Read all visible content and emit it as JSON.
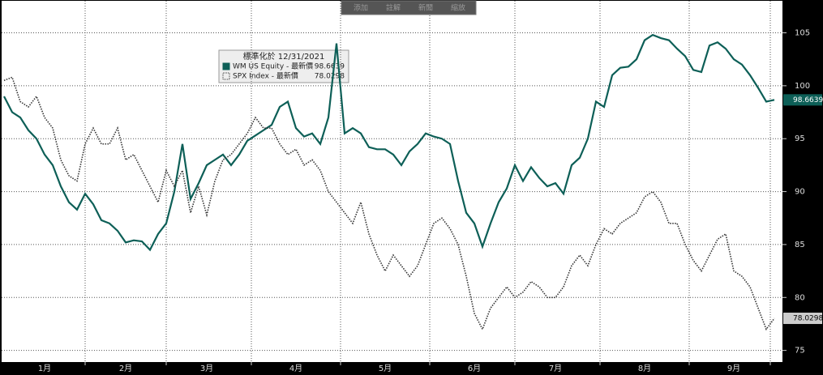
{
  "chart_data": {
    "type": "line",
    "toolbar": [
      "添加",
      "註解",
      "新聞",
      "縮放"
    ],
    "legend_title": "標準化於 12/31/2021",
    "categories": [
      null,
      null,
      null,
      null,
      null,
      "1月",
      null,
      null,
      null,
      null,
      null,
      null,
      null,
      null,
      null,
      "2月",
      null,
      null,
      null,
      null,
      null,
      null,
      null,
      null,
      null,
      "3月",
      null,
      null,
      null,
      null,
      null,
      null,
      null,
      null,
      null,
      null,
      "4月",
      null,
      null,
      null,
      null,
      null,
      null,
      null,
      null,
      null,
      null,
      "5月",
      null,
      null,
      null,
      null,
      null,
      null,
      null,
      null,
      null,
      null,
      "6月",
      null,
      null,
      null,
      null,
      null,
      null,
      null,
      null,
      null,
      "7月",
      null,
      null,
      null,
      null,
      null,
      null,
      null,
      null,
      null,
      null,
      "8月",
      null,
      null,
      null,
      null,
      null,
      null,
      null,
      null,
      null,
      null,
      "9月",
      null,
      null,
      null,
      null,
      null
    ],
    "series": [
      {
        "name": "WM US Equity - 最新價",
        "color": "#0d5f57",
        "style": "solid",
        "values": [
          99,
          97.5,
          97,
          95.8,
          95,
          93.5,
          92.5,
          90.5,
          89,
          88.3,
          89.8,
          88.8,
          87.3,
          87,
          86.3,
          85.2,
          85.4,
          85.3,
          84.5,
          86,
          87,
          90,
          94.5,
          89.3,
          90.8,
          92.5,
          93,
          93.5,
          92.5,
          93.5,
          94.8,
          95.3,
          95.8,
          96.3,
          98,
          98.5,
          96,
          95.2,
          95.5,
          94.5,
          97,
          104,
          95.5,
          96,
          95.5,
          94.2,
          94,
          94,
          93.5,
          92.5,
          93.8,
          94.5,
          95.5,
          95.2,
          95,
          94.5,
          91,
          88,
          87,
          84.8,
          87,
          89,
          90.3,
          92.5,
          91,
          92.3,
          91.3,
          90.5,
          90.8,
          89.8,
          92.5,
          93.2,
          95,
          98.5,
          98,
          101,
          101.7,
          101.8,
          102.5,
          104.3,
          104.8,
          104.5,
          104.3,
          103.5,
          102.8,
          101.5,
          101.3,
          103.8,
          104.1,
          103.5,
          102.5,
          102,
          101,
          99.8,
          98.5,
          98.6639
        ]
      },
      {
        "name": "SPX Index - 最新價",
        "color": "#333333",
        "style": "dotted",
        "values": [
          100.5,
          100.8,
          98.5,
          98,
          99,
          97,
          96,
          93,
          91.5,
          91,
          94.5,
          96,
          94.5,
          94.5,
          96,
          93,
          93.5,
          92,
          90.5,
          89,
          92,
          90.5,
          92,
          88,
          90.5,
          87.8,
          91,
          93,
          93.5,
          94.5,
          95.5,
          97,
          96,
          96,
          94.5,
          93.5,
          94,
          92.5,
          93,
          92,
          90,
          89,
          88,
          87,
          89,
          86,
          84,
          82.5,
          84,
          83,
          82,
          83,
          85,
          87,
          87.5,
          86.5,
          85,
          82,
          78.5,
          77,
          79,
          80,
          81,
          80,
          80.5,
          81.5,
          81,
          80,
          80,
          81,
          83,
          84,
          83,
          85,
          86.5,
          86,
          87,
          87.5,
          88,
          89.5,
          90,
          89,
          87,
          87,
          85,
          83.5,
          82.5,
          84,
          85.5,
          86,
          82.5,
          82,
          81,
          79,
          77,
          78.0298
        ]
      }
    ],
    "ylim": [
      73.9,
      108.1
    ],
    "yticks": [
      75,
      80,
      85,
      90,
      95,
      100,
      105
    ],
    "grid": true
  }
}
